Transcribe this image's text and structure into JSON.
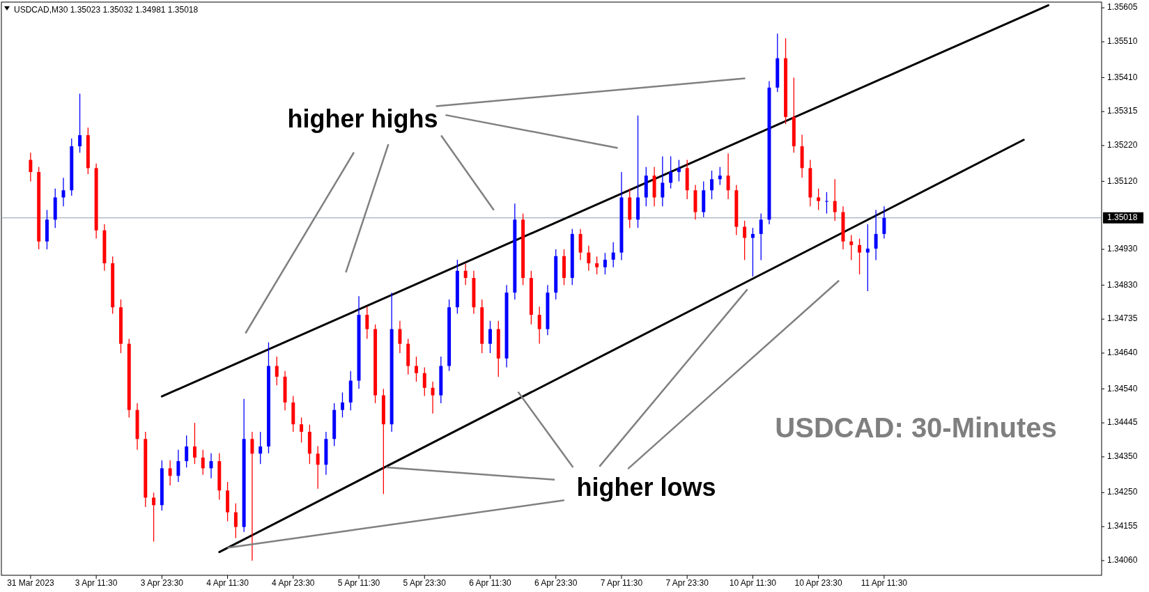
{
  "chart_data": {
    "type": "candlestick",
    "title": "USDCAD,M30  1.35023 1.35032 1.34981 1.35018",
    "annotations": [
      "higher highs",
      {
        "text": "higher lows",
        "x": "4 Apr 11:30",
        "y": 1.34096
      },
      "USDCAD: 30-Minutes"
    ],
    "colors": [
      "#ff0000",
      "#ff0000",
      "#0000ff",
      "#0000ff",
      "#0000ff",
      "#0000ff",
      "#0000ff",
      "#ff0000",
      "#ff0000",
      "#ff0000",
      "#ff0000",
      "#ff0000",
      "#ff0000",
      "#ff0000",
      "#ff0000",
      "#ff0000",
      "#0000ff",
      "#ff0000",
      "#0000ff",
      "#0000ff",
      "#ff0000",
      "#ff0000",
      "#0000ff",
      "#ff0000",
      "#ff0000",
      "#ff0000",
      "#0000ff",
      "#ff0000",
      "#0000ff",
      "#0000ff",
      "#ff0000",
      "#ff0000",
      "#ff0000",
      "#ff0000",
      "#ff0000",
      "#ff0000",
      "#0000ff",
      "#0000ff",
      "#0000ff",
      "#0000ff",
      "#0000ff",
      "#ff0000",
      "#ff0000",
      "#ff0000",
      "#0000ff",
      "#ff0000",
      "#ff0000",
      "#ff0000",
      "#ff0000",
      "#ff0000",
      "#0000ff",
      "#0000ff",
      "#0000ff",
      "#ff0000",
      "#ff0000",
      "#ff0000",
      "#0000ff",
      "#ff0000",
      "#0000ff",
      "#0000ff",
      "#ff0000",
      "#ff0000",
      "#ff0000",
      "#0000ff",
      "#0000ff",
      "#ff0000",
      "#0000ff",
      "#ff0000",
      "#ff0000",
      "#ff0000",
      "#0000ff",
      "#0000ff",
      "#0000ff",
      "#ff0000",
      "#0000ff",
      "#0000ff",
      "#ff0000",
      "#0000ff",
      "#0000ff",
      "#0000ff",
      "#ff0000",
      "#ff0000",
      "#0000ff",
      "#0000ff",
      "#0000ff",
      "#ff0000",
      "#ff0000",
      "#ff0000",
      "#0000ff",
      "#0000ff",
      "#0000ff",
      "#0000ff",
      "#ff0000",
      "#ff0000",
      "#ff0000",
      "#ff0000",
      "#ff0000",
      "#0000ff",
      "#ff0000",
      "#ff0000",
      "#ff0000",
      "#ff0000",
      "#0000ff",
      "#0000ff",
      "#0000ff",
      null,
      null,
      null,
      null,
      null,
      null,
      null,
      null,
      null,
      null,
      null,
      null,
      null,
      null,
      null,
      null,
      null,
      null,
      null,
      null,
      null,
      null,
      null,
      null,
      null,
      null
    ],
    "categories": [
      "31 Mar 2023",
      null,
      null,
      null,
      null,
      null,
      null,
      null,
      "3 Apr 11:30",
      null,
      null,
      null,
      null,
      null,
      null,
      null,
      "3 Apr 23:30",
      null,
      null,
      null,
      null,
      null,
      null,
      null,
      "4 Apr 11:30",
      null,
      null,
      null,
      null,
      null,
      null,
      null,
      "4 Apr 23:30",
      null,
      null,
      null,
      null,
      null,
      null,
      null,
      "5 Apr 11:30",
      null,
      null,
      null,
      null,
      null,
      null,
      null,
      "5 Apr 23:30",
      null,
      null,
      null,
      null,
      null,
      null,
      null,
      "6 Apr 11:30",
      null,
      null,
      null,
      null,
      null,
      null,
      null,
      "6 Apr 23:30",
      null,
      null,
      null,
      null,
      null,
      null,
      null,
      "7 Apr 11:30",
      null,
      null,
      null,
      null,
      null,
      null,
      null,
      "7 Apr 23:30",
      null,
      null,
      null,
      null,
      null,
      null,
      null,
      "10 Apr 11:30",
      null,
      null,
      null,
      null,
      null,
      null,
      null,
      "10 Apr 23:30",
      null,
      null,
      null,
      null,
      null,
      null,
      null,
      "11 Apr 11:30",
      null,
      null,
      null,
      null,
      null,
      null,
      null,
      null,
      null,
      null,
      null,
      null,
      null,
      null,
      null,
      null,
      null,
      null,
      null,
      null,
      null,
      null,
      null,
      null,
      null,
      null
    ],
    "ohlc": [
      [
        1.3518,
        1.352,
        1.3512,
        1.35146
      ],
      [
        1.35146,
        1.3516,
        1.3493,
        1.34952
      ],
      [
        1.34952,
        1.3504,
        1.3493,
        1.35013
      ],
      [
        1.35013,
        1.351,
        1.3499,
        1.35075
      ],
      [
        1.35075,
        1.3513,
        1.3505,
        1.35095
      ],
      [
        1.35095,
        1.3524,
        1.3508,
        1.35218
      ],
      [
        1.35218,
        1.35365,
        1.352,
        1.35249
      ],
      [
        1.35249,
        1.3527,
        1.3514,
        1.35157
      ],
      [
        1.35157,
        1.3517,
        1.3496,
        1.34983
      ],
      [
        1.34983,
        1.35,
        1.3487,
        1.34891
      ],
      [
        1.34891,
        1.3491,
        1.3475,
        1.34768
      ],
      [
        1.34768,
        1.3479,
        1.3464,
        1.34666
      ],
      [
        1.34666,
        1.3468,
        1.3446,
        1.34481
      ],
      [
        1.34481,
        1.345,
        1.3437,
        1.344
      ],
      [
        1.344,
        1.3442,
        1.3421,
        1.34236
      ],
      [
        1.34236,
        1.3425,
        1.34113,
        1.34215
      ],
      [
        1.34215,
        1.3434,
        1.342,
        1.34318
      ],
      [
        1.34318,
        1.3434,
        1.3427,
        1.34297
      ],
      [
        1.34297,
        1.3437,
        1.3428,
        1.34338
      ],
      [
        1.34338,
        1.3441,
        1.3432,
        1.34379
      ],
      [
        1.34379,
        1.34445,
        1.3433,
        1.34348
      ],
      [
        1.34348,
        1.3437,
        1.343,
        1.34318
      ],
      [
        1.34318,
        1.3436,
        1.3429,
        1.34338
      ],
      [
        1.34338,
        1.3436,
        1.3423,
        1.34256
      ],
      [
        1.34256,
        1.3428,
        1.3417,
        1.34195
      ],
      [
        1.34195,
        1.3422,
        1.34123,
        1.34154
      ],
      [
        1.34154,
        1.34512,
        1.3414,
        1.344
      ],
      [
        1.344,
        1.3442,
        1.3406,
        1.34359
      ],
      [
        1.34359,
        1.3442,
        1.3433,
        1.34379
      ],
      [
        1.34379,
        1.3467,
        1.3436,
        1.34604
      ],
      [
        1.34604,
        1.3463,
        1.3455,
        1.34574
      ],
      [
        1.34574,
        1.3459,
        1.3448,
        1.34502
      ],
      [
        1.34502,
        1.3452,
        1.3442,
        1.34441
      ],
      [
        1.34441,
        1.3446,
        1.3439,
        1.3442
      ],
      [
        1.3442,
        1.3444,
        1.3433,
        1.34359
      ],
      [
        1.34359,
        1.3438,
        1.34261,
        1.34328
      ],
      [
        1.34328,
        1.3442,
        1.343,
        1.344
      ],
      [
        1.344,
        1.345,
        1.3438,
        1.34481
      ],
      [
        1.34481,
        1.3453,
        1.3446,
        1.34502
      ],
      [
        1.34502,
        1.3459,
        1.3448,
        1.34563
      ],
      [
        1.34563,
        1.34799,
        1.3454,
        1.34747
      ],
      [
        1.34747,
        1.3477,
        1.3468,
        1.34707
      ],
      [
        1.34707,
        1.3472,
        1.345,
        1.34522
      ],
      [
        1.34522,
        1.3454,
        1.34246,
        1.34441
      ],
      [
        1.34441,
        1.34809,
        1.3442,
        1.34707
      ],
      [
        1.34707,
        1.3473,
        1.3464,
        1.34666
      ],
      [
        1.34666,
        1.3468,
        1.3458,
        1.34604
      ],
      [
        1.34604,
        1.3463,
        1.3456,
        1.34584
      ],
      [
        1.34584,
        1.346,
        1.3452,
        1.34543
      ],
      [
        1.34543,
        1.3456,
        1.34471,
        1.34522
      ],
      [
        1.34522,
        1.3463,
        1.345,
        1.34604
      ],
      [
        1.34604,
        1.3479,
        1.3459,
        1.34768
      ],
      [
        1.34768,
        1.34901,
        1.3475,
        1.3487
      ],
      [
        1.3487,
        1.3489,
        1.3483,
        1.3485
      ],
      [
        1.3485,
        1.3487,
        1.3475,
        1.34768
      ],
      [
        1.34768,
        1.3479,
        1.3464,
        1.34666
      ],
      [
        1.34666,
        1.3473,
        1.3464,
        1.34707
      ],
      [
        1.34707,
        1.3473,
        1.34574,
        1.34625
      ],
      [
        1.34625,
        1.3483,
        1.346,
        1.34809
      ],
      [
        1.34809,
        1.35058,
        1.3479,
        1.35013
      ],
      [
        1.35013,
        1.3503,
        1.3483,
        1.3485
      ],
      [
        1.3485,
        1.3487,
        1.3472,
        1.34747
      ],
      [
        1.34747,
        1.3477,
        1.34666,
        1.34707
      ],
      [
        1.34707,
        1.3483,
        1.3469,
        1.34809
      ],
      [
        1.34809,
        1.3493,
        1.3479,
        1.34911
      ],
      [
        1.34911,
        1.3493,
        1.3483,
        1.3485
      ],
      [
        1.3485,
        1.34987,
        1.3483,
        1.34973
      ],
      [
        1.34973,
        1.34987,
        1.349,
        1.34921
      ],
      [
        1.34921,
        1.3494,
        1.3487,
        1.34891
      ],
      [
        1.34891,
        1.3491,
        1.3486,
        1.3488
      ],
      [
        1.3488,
        1.3492,
        1.3486,
        1.34901
      ],
      [
        1.34901,
        1.3495,
        1.3488,
        1.34921
      ],
      [
        1.34921,
        1.35146,
        1.349,
        1.35075
      ],
      [
        1.35075,
        1.351,
        1.3499,
        1.35013
      ],
      [
        1.35013,
        1.35304,
        1.3499,
        1.35075
      ],
      [
        1.35075,
        1.3516,
        1.3505,
        1.35136
      ],
      [
        1.35136,
        1.3516,
        1.3505,
        1.35075
      ],
      [
        1.35075,
        1.3519,
        1.3505,
        1.35116
      ],
      [
        1.35116,
        1.3519,
        1.351,
        1.35146
      ],
      [
        1.35146,
        1.3518,
        1.3512,
        1.35157
      ],
      [
        1.35157,
        1.3518,
        1.3507,
        1.35095
      ],
      [
        1.35095,
        1.3511,
        1.35013,
        1.35034
      ],
      [
        1.35034,
        1.3512,
        1.3502,
        1.35095
      ],
      [
        1.35095,
        1.3515,
        1.3507,
        1.35126
      ],
      [
        1.35126,
        1.3516,
        1.3511,
        1.35136
      ],
      [
        1.35136,
        1.35198,
        1.3507,
        1.35095
      ],
      [
        1.35095,
        1.3511,
        1.3497,
        1.34993
      ],
      [
        1.34993,
        1.3501,
        1.349,
        1.34962
      ],
      [
        1.34962,
        1.3499,
        1.34854,
        1.34973
      ],
      [
        1.34973,
        1.3503,
        1.349,
        1.35013
      ],
      [
        1.35013,
        1.354,
        1.35,
        1.35382
      ],
      [
        1.35382,
        1.35533,
        1.3537,
        1.35464
      ],
      [
        1.35464,
        1.3552,
        1.3528,
        1.353
      ],
      [
        1.353,
        1.3541,
        1.352,
        1.35218
      ],
      [
        1.35218,
        1.3525,
        1.3513,
        1.35157
      ],
      [
        1.35157,
        1.3518,
        1.3505,
        1.35075
      ],
      [
        1.35075,
        1.351,
        1.3504,
        1.35065
      ],
      [
        1.35065,
        1.3509,
        1.3503,
        1.35065
      ],
      [
        1.35065,
        1.35126,
        1.3501,
        1.35034
      ],
      [
        1.35034,
        1.3505,
        1.3493,
        1.34952
      ],
      [
        1.34952,
        1.3497,
        1.349,
        1.34942
      ],
      [
        1.34942,
        1.3496,
        1.3486,
        1.34921
      ],
      [
        1.34921,
        1.35,
        1.34813,
        1.34932
      ],
      [
        1.34932,
        1.3504,
        1.349,
        1.34973
      ],
      [
        1.34973,
        1.3505,
        1.3496,
        1.35018
      ],
      null,
      null,
      null,
      null,
      null,
      null,
      null,
      null,
      null,
      null,
      null,
      null,
      null,
      null,
      null,
      null,
      null,
      null,
      null,
      null,
      null,
      null,
      null,
      null,
      null,
      null
    ],
    "series": [
      {
        "type": "line",
        "color": "#000000",
        "values": [
          null,
          null,
          null,
          null,
          null,
          null,
          null,
          null,
          null,
          null,
          null,
          null,
          null,
          null,
          null,
          null,
          1.34519,
          null,
          null,
          null,
          null,
          null,
          null,
          null,
          null,
          null,
          null,
          null,
          null,
          null,
          null,
          null,
          null,
          null,
          null,
          null,
          null,
          null,
          null,
          null,
          null,
          null,
          null,
          null,
          null,
          null,
          null,
          null,
          null,
          null,
          null,
          null,
          null,
          null,
          null,
          null,
          null,
          null,
          null,
          null,
          null,
          null,
          null,
          null,
          null,
          null,
          null,
          null,
          null,
          null,
          null,
          null,
          null,
          null,
          null,
          null,
          null,
          null,
          null,
          null,
          null,
          null,
          null,
          null,
          null,
          null,
          null,
          null,
          null,
          null,
          null,
          null,
          null,
          null,
          null,
          null,
          null,
          null,
          null,
          null,
          null,
          null,
          null,
          null,
          null,
          null,
          null,
          null,
          null,
          null,
          null,
          null,
          null,
          null,
          null,
          null,
          null,
          null,
          null,
          null,
          null,
          null,
          null,
          null,
          1.35612,
          null,
          null,
          null,
          null,
          null,
          null
        ]
      },
      {
        "type": "line",
        "color": "#000000",
        "values": [
          null,
          null,
          null,
          null,
          null,
          null,
          null,
          null,
          null,
          null,
          null,
          null,
          null,
          null,
          null,
          null,
          null,
          null,
          null,
          null,
          null,
          null,
          null,
          1.34084,
          null,
          null,
          null,
          null,
          null,
          null,
          null,
          null,
          null,
          null,
          null,
          null,
          null,
          null,
          null,
          null,
          null,
          null,
          null,
          null,
          null,
          null,
          null,
          null,
          null,
          null,
          null,
          null,
          null,
          null,
          null,
          null,
          null,
          null,
          null,
          null,
          null,
          null,
          null,
          null,
          null,
          null,
          null,
          null,
          null,
          null,
          null,
          null,
          null,
          null,
          null,
          null,
          null,
          null,
          null,
          null,
          null,
          null,
          null,
          null,
          null,
          null,
          null,
          null,
          null,
          null,
          null,
          null,
          null,
          null,
          null,
          null,
          null,
          null,
          null,
          null,
          null,
          null,
          null,
          null,
          null,
          null,
          null,
          null,
          null,
          null,
          null,
          null,
          null,
          null,
          null,
          null,
          null,
          null,
          null,
          null,
          null,
          1.35236,
          null,
          null,
          null,
          null,
          null,
          null,
          null,
          null,
          null
        ]
      }
    ],
    "ylim": [
      1.34019,
      1.35621
    ],
    "yticks": [
      {
        "value": 1.3406,
        "label": "1.34060"
      },
      {
        "value": 1.34155,
        "label": "1.34155"
      },
      {
        "value": 1.3425,
        "label": "1.34250"
      },
      {
        "value": 1.3435,
        "label": "1.34350"
      },
      {
        "value": 1.34445,
        "label": "1.34445"
      },
      {
        "value": 1.3454,
        "label": "1.34540"
      },
      {
        "value": 1.3464,
        "label": "1.34640"
      },
      {
        "value": 1.34735,
        "label": "1.34735"
      },
      {
        "value": 1.3483,
        "label": "1.34830"
      },
      {
        "value": 1.3493,
        "label": "1.34930"
      },
      {
        "value": 1.3512,
        "label": "1.35120"
      },
      {
        "value": 1.3522,
        "label": "1.35220"
      },
      {
        "value": 1.35315,
        "label": "1.35315"
      },
      {
        "value": 1.3541,
        "label": "1.35410"
      },
      {
        "value": 1.3551,
        "label": "1.35510"
      },
      {
        "value": 1.35605,
        "label": "1.35605"
      }
    ],
    "ref_lines": [
      {
        "axis": "y",
        "value": 1.35018,
        "label": "1.35018",
        "color": "#8c9cb0"
      }
    ]
  }
}
